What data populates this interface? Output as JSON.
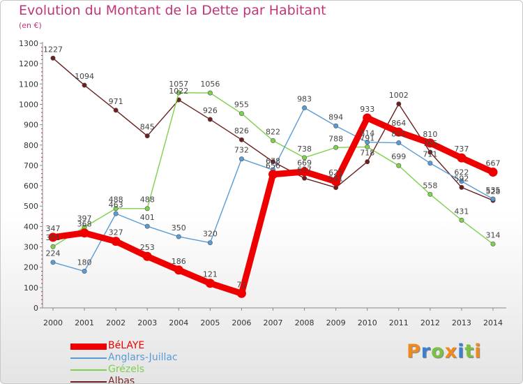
{
  "title": "Evolution du Montant de la Dette par Habitant",
  "subtitle": "(en €)",
  "logo": {
    "letters": [
      "P",
      "r",
      "o",
      "x",
      "i",
      "t",
      "i"
    ],
    "colors": [
      "#f08a1c",
      "#3a7fd0",
      "#7ac043",
      "#f08a1c",
      "#3a7fd0",
      "#7ac043",
      "#f08a1c"
    ]
  },
  "chart_data": {
    "type": "line",
    "x": [
      "2000",
      "2001",
      "2002",
      "2003",
      "2004",
      "2005",
      "2006",
      "2007",
      "2008",
      "2009",
      "2010",
      "2011",
      "2012",
      "2013",
      "2014"
    ],
    "ylim": [
      0,
      1300
    ],
    "yticks": [
      "0",
      "100",
      "200",
      "300",
      "400",
      "500",
      "600",
      "700",
      "800",
      "900",
      "1000",
      "1100",
      "1200",
      "1300"
    ],
    "grid": false,
    "legend_position": "bottom-left",
    "series": [
      {
        "name": "Albas",
        "color": "#6b1f1f",
        "values": [
          1227,
          1094,
          971,
          845,
          1022,
          926,
          826,
          718,
          637,
          591,
          718,
          1002,
          765,
          592,
          528
        ],
        "labels": [
          "1227",
          "1094",
          "971",
          "845",
          "1022",
          "926",
          "826",
          "",
          "637",
          "591",
          "718",
          "1002",
          "765",
          "592",
          "528"
        ]
      },
      {
        "name": "Grézels",
        "color": "#7fd04f",
        "values": [
          301,
          397,
          488,
          488,
          1057,
          1056,
          955,
          822,
          738,
          788,
          791,
          699,
          558,
          431,
          314
        ],
        "labels": [
          "301",
          "397",
          "488",
          "488",
          "1057",
          "1056",
          "955",
          "822",
          "738",
          "788",
          "791",
          "699",
          "558",
          "431",
          "314"
        ]
      },
      {
        "name": "Anglars-Juillac",
        "color": "#5a9bd5",
        "values": [
          224,
          180,
          463,
          401,
          350,
          320,
          732,
          678,
          983,
          894,
          814,
          811,
          711,
          622,
          535
        ],
        "labels": [
          "224",
          "180",
          "463",
          "401",
          "350",
          "320",
          "732",
          "678",
          "983",
          "894",
          "814",
          "811",
          "711",
          "622",
          "535"
        ]
      },
      {
        "name": "BéLAYE",
        "color": "#ee0000",
        "values": [
          347,
          368,
          327,
          253,
          186,
          121,
          71,
          656,
          669,
          621,
          933,
          864,
          810,
          737,
          667
        ],
        "labels": [
          "347",
          "368",
          "327",
          "253",
          "186",
          "121",
          "71",
          "656",
          "669",
          "621",
          "933",
          "864",
          "810",
          "737",
          "667"
        ]
      }
    ]
  }
}
